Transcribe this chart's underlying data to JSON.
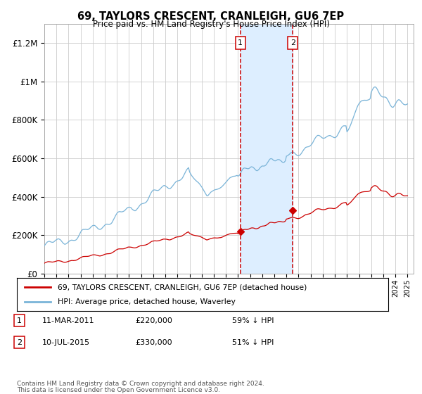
{
  "title": "69, TAYLORS CRESCENT, CRANLEIGH, GU6 7EP",
  "subtitle": "Price paid vs. HM Land Registry's House Price Index (HPI)",
  "legend_line1": "69, TAYLORS CRESCENT, CRANLEIGH, GU6 7EP (detached house)",
  "legend_line2": "HPI: Average price, detached house, Waverley",
  "annotation1_date": "11-MAR-2011",
  "annotation1_price": 220000,
  "annotation1_price_str": "£220,000",
  "annotation1_pct": "59% ↓ HPI",
  "annotation2_date": "10-JUL-2015",
  "annotation2_price": 330000,
  "annotation2_price_str": "£330,000",
  "annotation2_pct": "51% ↓ HPI",
  "footnote_line1": "Contains HM Land Registry data © Crown copyright and database right 2024.",
  "footnote_line2": "This data is licensed under the Open Government Licence v3.0.",
  "hpi_color": "#7ab4d8",
  "price_color": "#cc0000",
  "vline_color": "#cc0000",
  "shade_color": "#ddeeff",
  "grid_color": "#cccccc",
  "background_color": "#ffffff",
  "ylim": [
    0,
    1300000
  ],
  "yticks": [
    0,
    200000,
    400000,
    600000,
    800000,
    1000000,
    1200000
  ],
  "ytick_labels": [
    "£0",
    "£200K",
    "£400K",
    "£600K",
    "£800K",
    "£1M",
    "£1.2M"
  ],
  "xstart_year": 1995,
  "xend_year": 2025,
  "sale1_year": 2011.19,
  "sale2_year": 2015.52
}
